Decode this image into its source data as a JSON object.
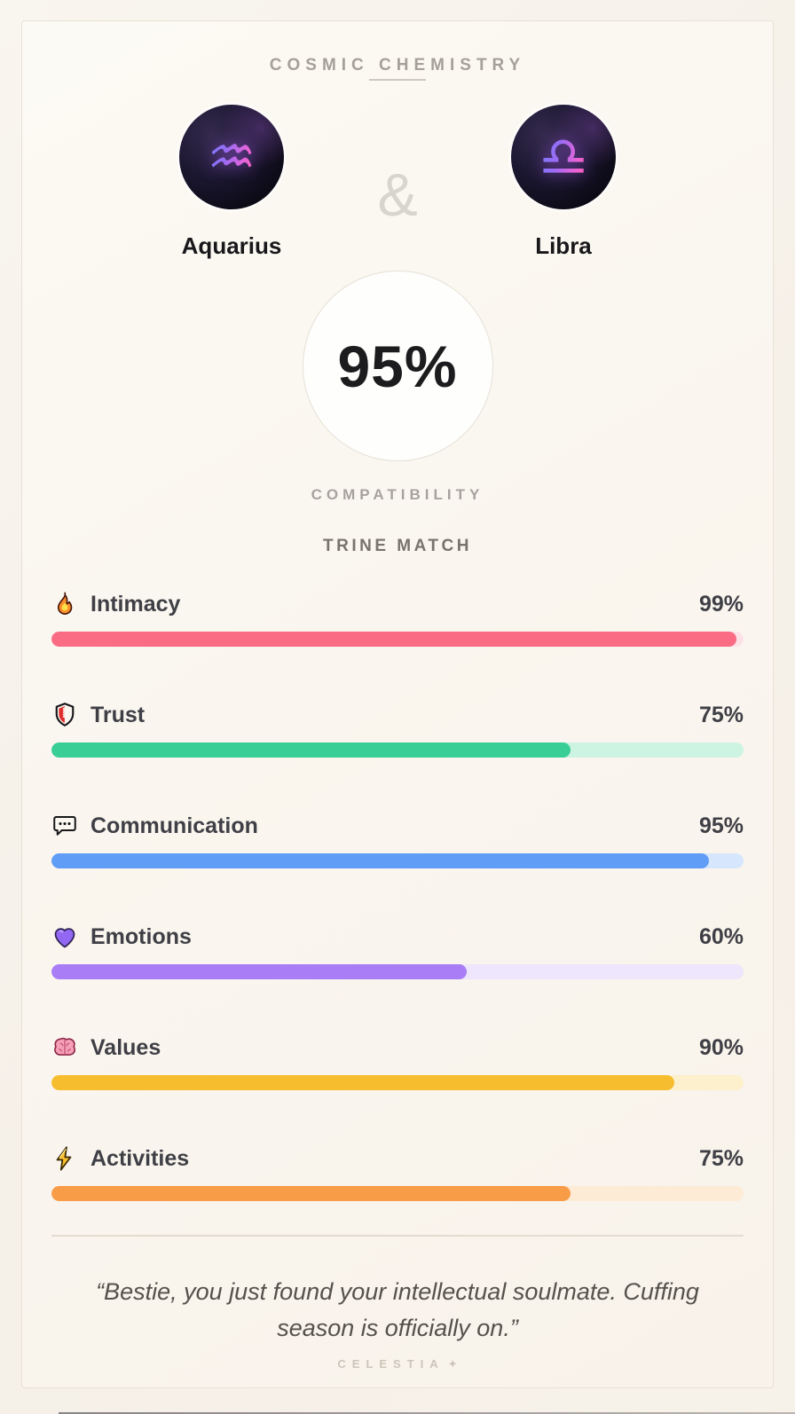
{
  "header": {
    "title": "COSMIC CHEMISTRY"
  },
  "pair": {
    "left": {
      "name": "Aquarius",
      "glyph": "♒"
    },
    "right": {
      "name": "Libra",
      "glyph": "♎"
    },
    "separator": "&"
  },
  "score": {
    "value": "95%",
    "label": "COMPATIBILITY",
    "match_type": "TRINE MATCH"
  },
  "stats": [
    {
      "label": "Intimacy",
      "display": "99%",
      "value": 99,
      "icon": "fire-icon",
      "bar_color": "#FA6B84",
      "track_color": "#FDE3E8"
    },
    {
      "label": "Trust",
      "display": "75%",
      "value": 75,
      "icon": "shield-icon",
      "bar_color": "#38CE95",
      "track_color": "#CDF4E3"
    },
    {
      "label": "Communication",
      "display": "95%",
      "value": 95,
      "icon": "speech-bubble-icon",
      "bar_color": "#5F9DF6",
      "track_color": "#D6E7FD"
    },
    {
      "label": "Emotions",
      "display": "60%",
      "value": 60,
      "icon": "purple-heart-icon",
      "bar_color": "#A97DF6",
      "track_color": "#EEE6FC"
    },
    {
      "label": "Values",
      "display": "90%",
      "value": 90,
      "icon": "brain-icon",
      "bar_color": "#F6BD2E",
      "track_color": "#FCF0CD"
    },
    {
      "label": "Activities",
      "display": "75%",
      "value": 75,
      "icon": "lightning-icon",
      "bar_color": "#F99C47",
      "track_color": "#FEEBD5"
    }
  ],
  "quote": "“Bestie, you just found your intellectual soulmate. Cuffing season is officially on.”",
  "footer": {
    "brand": "CELESTIA",
    "sparkle": "✦"
  }
}
